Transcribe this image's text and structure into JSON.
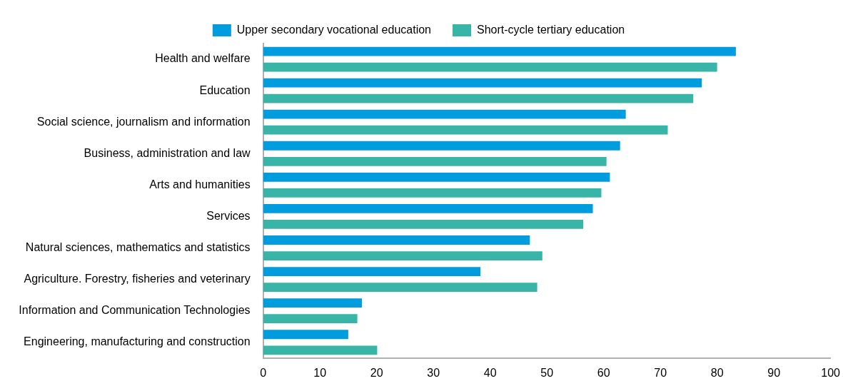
{
  "chart_data": {
    "type": "bar",
    "orientation": "horizontal",
    "categories": [
      "Health and welfare",
      "Education",
      "Social science, journalism and information",
      "Business, administration and law",
      "Arts and humanities",
      "Services",
      "Natural sciences, mathematics and statistics",
      "Agriculture. Forestry, fisheries and veterinary",
      "Information and Communication Technologies",
      "Engineering, manufacturing and construction"
    ],
    "series": [
      {
        "name": "Upper secondary vocational education",
        "color": "#009cde",
        "values": [
          83.3,
          77.3,
          63.9,
          62.9,
          61.1,
          58.1,
          47.0,
          38.3,
          17.4,
          15.0
        ]
      },
      {
        "name": "Short-cycle tertiary education",
        "color": "#38b5a6",
        "values": [
          80.0,
          75.8,
          71.3,
          60.5,
          59.6,
          56.4,
          49.2,
          48.3,
          16.6,
          20.1
        ]
      }
    ],
    "xlim": [
      0,
      100
    ],
    "xticks": [
      0,
      10,
      20,
      30,
      40,
      50,
      60,
      70,
      80,
      90,
      100
    ],
    "grid": false,
    "legend": "top"
  }
}
